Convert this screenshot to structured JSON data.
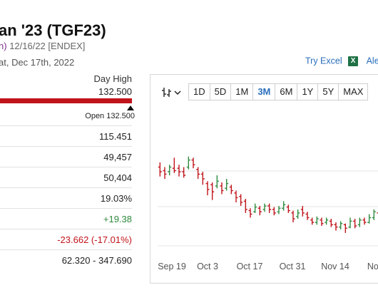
{
  "header": {
    "title": "an '23 (TGF23)",
    "sub_left": "n)",
    "sub_date": "12/16/22 [ENDEX]",
    "date": "at, Dec 17th, 2022"
  },
  "tools": {
    "excel_label": "Try Excel",
    "excel_icon_text": "X",
    "alerts_label": "Ale"
  },
  "stats": {
    "day_high_label": "Day High",
    "day_high_value": "132.500",
    "open_label": "Open 132.500",
    "rows": [
      "115.451",
      "49,457",
      "50,404",
      "19.03%",
      "+19.38",
      "-23.662 (-17.01%)",
      "62.320 - 347.690"
    ]
  },
  "chart": {
    "ranges": [
      "1D",
      "5D",
      "1M",
      "3M",
      "6M",
      "1Y",
      "5Y",
      "MAX"
    ],
    "active_range": "3M",
    "x_labels": [
      "Sep 19",
      "Oct 3",
      "Oct 17",
      "Oct 31",
      "Nov 14",
      "Nov"
    ]
  },
  "chart_data": {
    "type": "ohlc",
    "title": "",
    "xlabel": "",
    "ylabel": "",
    "x_ticks": [
      "Sep 19",
      "Oct 3",
      "Oct 17",
      "Oct 31",
      "Nov 14",
      "Nov"
    ],
    "bars": [
      {
        "o": 0.7,
        "c": 0.66,
        "h": 0.74,
        "l": 0.62,
        "up": false
      },
      {
        "o": 0.67,
        "c": 0.64,
        "h": 0.7,
        "l": 0.6,
        "up": false
      },
      {
        "o": 0.66,
        "c": 0.7,
        "h": 0.72,
        "l": 0.63,
        "up": true
      },
      {
        "o": 0.69,
        "c": 0.67,
        "h": 0.78,
        "l": 0.65,
        "up": false
      },
      {
        "o": 0.69,
        "c": 0.66,
        "h": 0.72,
        "l": 0.62,
        "up": false
      },
      {
        "o": 0.66,
        "c": 0.63,
        "h": 0.7,
        "l": 0.61,
        "up": false
      },
      {
        "o": 0.7,
        "c": 0.76,
        "h": 0.79,
        "l": 0.68,
        "up": true
      },
      {
        "o": 0.76,
        "c": 0.72,
        "h": 0.78,
        "l": 0.69,
        "up": false
      },
      {
        "o": 0.68,
        "c": 0.64,
        "h": 0.7,
        "l": 0.6,
        "up": false
      },
      {
        "o": 0.64,
        "c": 0.6,
        "h": 0.66,
        "l": 0.55,
        "up": false
      },
      {
        "o": 0.56,
        "c": 0.51,
        "h": 0.58,
        "l": 0.46,
        "up": false
      },
      {
        "o": 0.55,
        "c": 0.49,
        "h": 0.57,
        "l": 0.42,
        "up": false
      },
      {
        "o": 0.54,
        "c": 0.58,
        "h": 0.63,
        "l": 0.52,
        "up": true
      },
      {
        "o": 0.54,
        "c": 0.5,
        "h": 0.57,
        "l": 0.47,
        "up": false
      },
      {
        "o": 0.52,
        "c": 0.56,
        "h": 0.6,
        "l": 0.5,
        "up": true
      },
      {
        "o": 0.53,
        "c": 0.5,
        "h": 0.55,
        "l": 0.47,
        "up": false
      },
      {
        "o": 0.48,
        "c": 0.44,
        "h": 0.5,
        "l": 0.4,
        "up": false
      },
      {
        "o": 0.45,
        "c": 0.4,
        "h": 0.47,
        "l": 0.37,
        "up": false
      },
      {
        "o": 0.41,
        "c": 0.34,
        "h": 0.43,
        "l": 0.31,
        "up": false
      },
      {
        "o": 0.33,
        "c": 0.3,
        "h": 0.35,
        "l": 0.27,
        "up": false
      },
      {
        "o": 0.32,
        "c": 0.36,
        "h": 0.39,
        "l": 0.31,
        "up": true
      },
      {
        "o": 0.35,
        "c": 0.32,
        "h": 0.37,
        "l": 0.29,
        "up": false
      },
      {
        "o": 0.34,
        "c": 0.37,
        "h": 0.39,
        "l": 0.32,
        "up": true
      },
      {
        "o": 0.37,
        "c": 0.34,
        "h": 0.39,
        "l": 0.31,
        "up": false
      },
      {
        "o": 0.34,
        "c": 0.31,
        "h": 0.36,
        "l": 0.29,
        "up": false
      },
      {
        "o": 0.32,
        "c": 0.35,
        "h": 0.37,
        "l": 0.3,
        "up": true
      },
      {
        "o": 0.35,
        "c": 0.38,
        "h": 0.41,
        "l": 0.33,
        "up": true
      },
      {
        "o": 0.36,
        "c": 0.33,
        "h": 0.38,
        "l": 0.31,
        "up": false
      },
      {
        "o": 0.31,
        "c": 0.26,
        "h": 0.33,
        "l": 0.23,
        "up": false
      },
      {
        "o": 0.28,
        "c": 0.31,
        "h": 0.34,
        "l": 0.26,
        "up": true
      },
      {
        "o": 0.34,
        "c": 0.31,
        "h": 0.37,
        "l": 0.28,
        "up": false
      },
      {
        "o": 0.3,
        "c": 0.27,
        "h": 0.32,
        "l": 0.25,
        "up": false
      },
      {
        "o": 0.25,
        "c": 0.23,
        "h": 0.27,
        "l": 0.21,
        "up": false
      },
      {
        "o": 0.23,
        "c": 0.26,
        "h": 0.28,
        "l": 0.21,
        "up": true
      },
      {
        "o": 0.25,
        "c": 0.22,
        "h": 0.27,
        "l": 0.2,
        "up": false
      },
      {
        "o": 0.23,
        "c": 0.25,
        "h": 0.27,
        "l": 0.21,
        "up": true
      },
      {
        "o": 0.24,
        "c": 0.21,
        "h": 0.26,
        "l": 0.19,
        "up": false
      },
      {
        "o": 0.21,
        "c": 0.19,
        "h": 0.23,
        "l": 0.16,
        "up": false
      },
      {
        "o": 0.19,
        "c": 0.22,
        "h": 0.24,
        "l": 0.17,
        "up": true
      },
      {
        "o": 0.21,
        "c": 0.18,
        "h": 0.22,
        "l": 0.14,
        "up": false
      },
      {
        "o": 0.19,
        "c": 0.24,
        "h": 0.27,
        "l": 0.18,
        "up": true
      },
      {
        "o": 0.24,
        "c": 0.2,
        "h": 0.26,
        "l": 0.18,
        "up": false
      },
      {
        "o": 0.21,
        "c": 0.25,
        "h": 0.27,
        "l": 0.19,
        "up": true
      },
      {
        "o": 0.25,
        "c": 0.23,
        "h": 0.27,
        "l": 0.21,
        "up": false
      },
      {
        "o": 0.23,
        "c": 0.27,
        "h": 0.3,
        "l": 0.22,
        "up": true
      },
      {
        "o": 0.27,
        "c": 0.32,
        "h": 0.34,
        "l": 0.25,
        "up": true
      },
      {
        "o": 0.31,
        "c": 0.28,
        "h": 0.33,
        "l": 0.26,
        "up": false
      },
      {
        "o": 0.28,
        "c": 0.26,
        "h": 0.3,
        "l": 0.24,
        "up": false
      }
    ],
    "up_color": "#2e8b3d",
    "down_color": "#c0141a",
    "grid": true
  }
}
